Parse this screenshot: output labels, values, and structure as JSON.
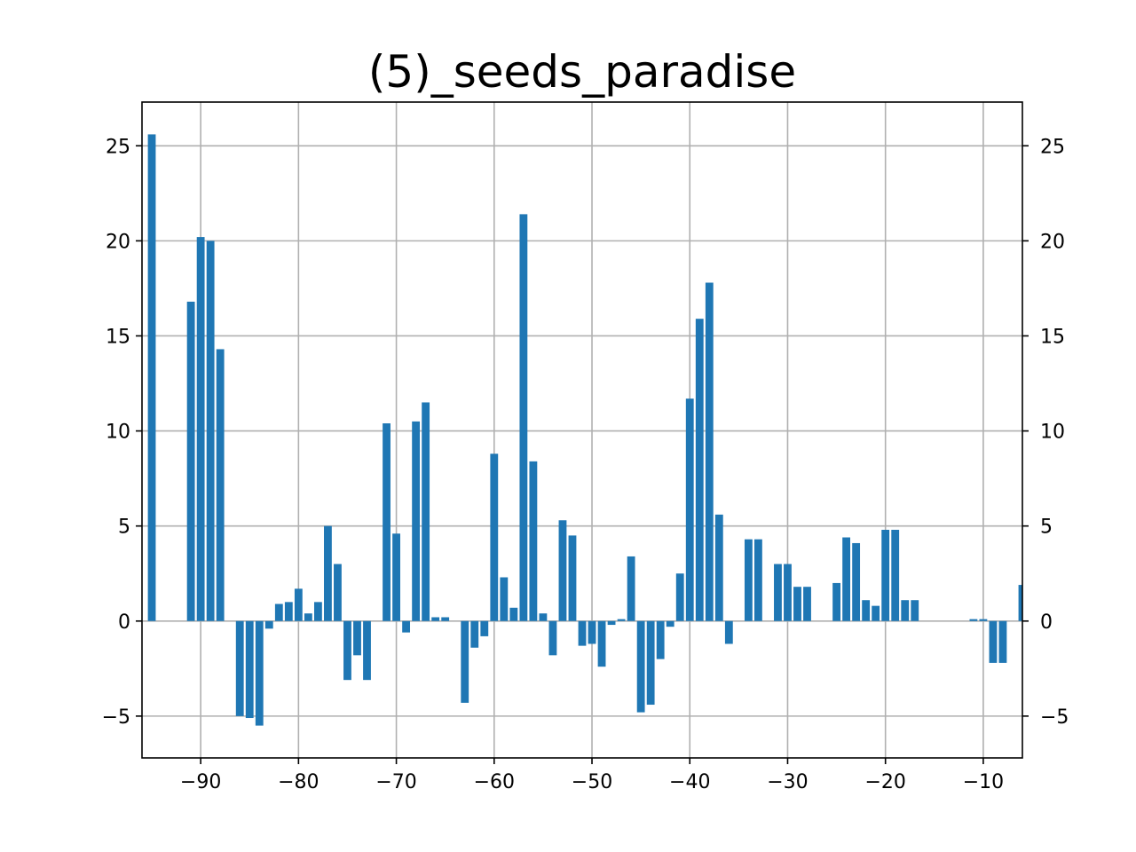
{
  "chart_data": {
    "type": "bar",
    "title": "(5)_seeds_paradise",
    "xlabel": "",
    "ylabel": "",
    "xlim": [
      -96,
      -6
    ],
    "ylim": [
      -7.2,
      27.3
    ],
    "xticks": [
      -90,
      -80,
      -70,
      -60,
      -50,
      -40,
      -30,
      -20,
      -10
    ],
    "xtick_labels": [
      "−90",
      "−80",
      "−70",
      "−60",
      "−50",
      "−40",
      "−30",
      "−20",
      "−10"
    ],
    "yticks": [
      -5,
      0,
      5,
      10,
      15,
      20,
      25
    ],
    "ytick_labels": [
      "−5",
      "0",
      "5",
      "10",
      "15",
      "20",
      "25"
    ],
    "grid": true,
    "right_axis_labels": true,
    "bar_color": "#1f77b4",
    "x": [
      -95,
      -91,
      -90,
      -89,
      -88,
      -86,
      -85,
      -84,
      -83,
      -82,
      -81,
      -80,
      -79,
      -78,
      -77,
      -76,
      -75,
      -74,
      -73,
      -71,
      -70,
      -69,
      -68,
      -67,
      -66,
      -65,
      -63,
      -62,
      -61,
      -60,
      -59,
      -58,
      -57,
      -56,
      -55,
      -54,
      -53,
      -52,
      -51,
      -50,
      -49,
      -48,
      -47,
      -46,
      -45,
      -44,
      -43,
      -42,
      -41,
      -40,
      -39,
      -38,
      -37,
      -36,
      -34,
      -33,
      -31,
      -30,
      -29,
      -28,
      -25,
      -24,
      -23,
      -22,
      -21,
      -20,
      -19,
      -18,
      -17,
      -11,
      -10,
      -9,
      -8,
      -6
    ],
    "values": [
      25.6,
      16.8,
      20.2,
      20.0,
      14.3,
      -5.0,
      -5.1,
      -5.5,
      -0.4,
      0.9,
      1.0,
      1.7,
      0.4,
      1.0,
      5.0,
      3.0,
      -3.1,
      -1.8,
      -3.1,
      10.4,
      4.6,
      -0.6,
      10.5,
      11.5,
      0.2,
      0.2,
      -4.3,
      -1.4,
      -0.8,
      8.8,
      2.3,
      0.7,
      21.4,
      8.4,
      0.4,
      -1.8,
      5.3,
      4.5,
      -1.3,
      -1.2,
      -2.4,
      -0.2,
      0.1,
      3.4,
      -4.8,
      -4.4,
      -2.0,
      -0.3,
      2.5,
      11.7,
      15.9,
      17.8,
      5.6,
      -1.2,
      4.3,
      4.3,
      3.0,
      3.0,
      1.8,
      1.8,
      2.0,
      4.4,
      4.1,
      1.1,
      0.8,
      4.8,
      4.8,
      1.1,
      1.1,
      0.1,
      0.1,
      -2.2,
      -2.2,
      1.9
    ]
  }
}
